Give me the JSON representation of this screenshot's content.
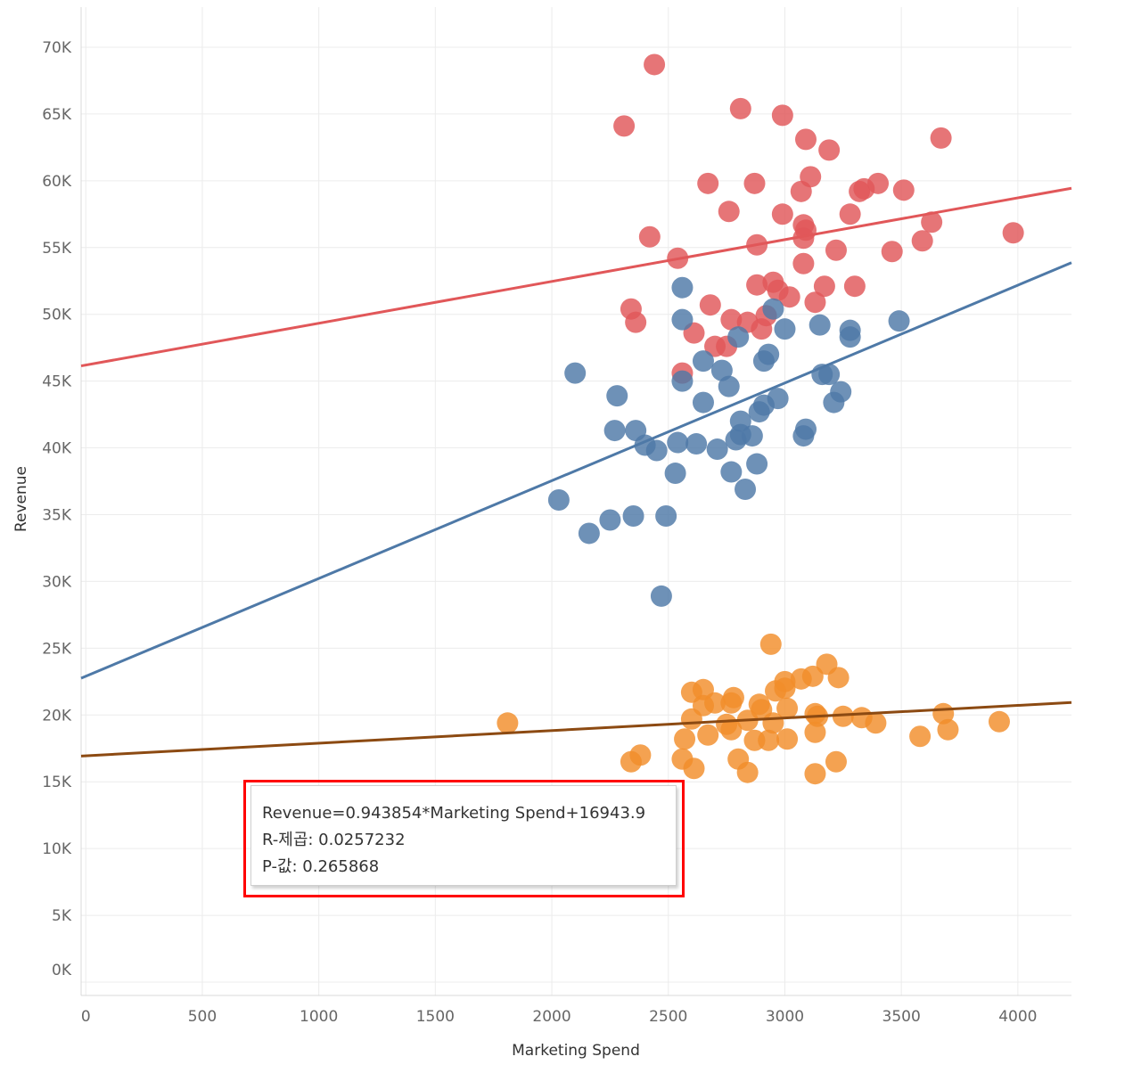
{
  "chart_data": {
    "type": "scatter",
    "xlabel": "Marketing Spend",
    "ylabel": "Revenue",
    "xlim": [
      -20,
      4230
    ],
    "ylim": [
      -1000,
      73000
    ],
    "x_ticks": [
      0,
      500,
      1000,
      1500,
      2000,
      2500,
      3000,
      3500,
      4000
    ],
    "x_tick_labels": [
      "0",
      "500",
      "1000",
      "1500",
      "2000",
      "2500",
      "3000",
      "3500",
      "4000"
    ],
    "y_ticks": [
      0,
      5000,
      10000,
      15000,
      20000,
      25000,
      30000,
      35000,
      40000,
      45000,
      50000,
      55000,
      60000,
      65000,
      70000
    ],
    "y_tick_labels": [
      "0K",
      "5K",
      "10K",
      "15K",
      "20K",
      "25K",
      "30K",
      "35K",
      "40K",
      "45K",
      "50K",
      "55K",
      "60K",
      "65K",
      "70K"
    ],
    "grid": true,
    "series": [
      {
        "color": "#e15759",
        "trend": {
          "slope": 3.13,
          "intercept": 46200
        },
        "points": [
          [
            2440,
            68700
          ],
          [
            2310,
            64100
          ],
          [
            2810,
            65400
          ],
          [
            2990,
            64900
          ],
          [
            3090,
            63100
          ],
          [
            3190,
            62300
          ],
          [
            3670,
            63200
          ],
          [
            3110,
            60300
          ],
          [
            2670,
            59800
          ],
          [
            2870,
            59800
          ],
          [
            3320,
            59200
          ],
          [
            3340,
            59400
          ],
          [
            3400,
            59800
          ],
          [
            3510,
            59300
          ],
          [
            3070,
            59200
          ],
          [
            2760,
            57700
          ],
          [
            2990,
            57500
          ],
          [
            3280,
            57500
          ],
          [
            3080,
            56700
          ],
          [
            3090,
            56300
          ],
          [
            3080,
            55700
          ],
          [
            3630,
            56900
          ],
          [
            3980,
            56100
          ],
          [
            2420,
            55800
          ],
          [
            2880,
            55200
          ],
          [
            3590,
            55500
          ],
          [
            3220,
            54800
          ],
          [
            3460,
            54700
          ],
          [
            2540,
            54200
          ],
          [
            3080,
            53800
          ],
          [
            2880,
            52200
          ],
          [
            2950,
            52400
          ],
          [
            2970,
            51800
          ],
          [
            3020,
            51300
          ],
          [
            3170,
            52100
          ],
          [
            3300,
            52100
          ],
          [
            2340,
            50400
          ],
          [
            2360,
            49400
          ],
          [
            2680,
            50700
          ],
          [
            2770,
            49600
          ],
          [
            2840,
            49400
          ],
          [
            2920,
            49900
          ],
          [
            2900,
            48900
          ],
          [
            2610,
            48600
          ],
          [
            2700,
            47600
          ],
          [
            2750,
            47600
          ],
          [
            2560,
            45600
          ],
          [
            3130,
            50900
          ]
        ]
      },
      {
        "color": "#4e79a7",
        "trend": {
          "slope": 7.32,
          "intercept": 22900
        },
        "points": [
          [
            2560,
            52000
          ],
          [
            2950,
            50400
          ],
          [
            2560,
            49600
          ],
          [
            3000,
            48900
          ],
          [
            3150,
            49200
          ],
          [
            3280,
            48800
          ],
          [
            3280,
            48300
          ],
          [
            3490,
            49500
          ],
          [
            2800,
            48300
          ],
          [
            2930,
            47000
          ],
          [
            2910,
            46500
          ],
          [
            2650,
            46500
          ],
          [
            2730,
            45800
          ],
          [
            2560,
            45000
          ],
          [
            2100,
            45600
          ],
          [
            3160,
            45500
          ],
          [
            3190,
            45500
          ],
          [
            2760,
            44600
          ],
          [
            3240,
            44200
          ],
          [
            2280,
            43900
          ],
          [
            2970,
            43700
          ],
          [
            2650,
            43400
          ],
          [
            3210,
            43400
          ],
          [
            2910,
            43200
          ],
          [
            2890,
            42700
          ],
          [
            2810,
            42000
          ],
          [
            2360,
            41300
          ],
          [
            2270,
            41300
          ],
          [
            3090,
            41400
          ],
          [
            3080,
            40900
          ],
          [
            2810,
            41000
          ],
          [
            2790,
            40600
          ],
          [
            2860,
            40900
          ],
          [
            2400,
            40200
          ],
          [
            2450,
            39800
          ],
          [
            2540,
            40400
          ],
          [
            2620,
            40300
          ],
          [
            2710,
            39900
          ],
          [
            2880,
            38800
          ],
          [
            2530,
            38100
          ],
          [
            2770,
            38200
          ],
          [
            2830,
            36900
          ],
          [
            2030,
            36100
          ],
          [
            2160,
            33600
          ],
          [
            2250,
            34600
          ],
          [
            2350,
            34900
          ],
          [
            2490,
            34900
          ],
          [
            2470,
            28900
          ]
        ]
      },
      {
        "color": "#f28e2b",
        "trend": {
          "slope": 0.943854,
          "intercept": 16943.9
        },
        "points": [
          [
            2940,
            25300
          ],
          [
            3180,
            23800
          ],
          [
            3000,
            22500
          ],
          [
            3070,
            22700
          ],
          [
            3120,
            22900
          ],
          [
            3230,
            22800
          ],
          [
            2600,
            21700
          ],
          [
            2650,
            21900
          ],
          [
            2960,
            21800
          ],
          [
            3000,
            22000
          ],
          [
            2780,
            21300
          ],
          [
            2700,
            20900
          ],
          [
            2650,
            20700
          ],
          [
            2770,
            20900
          ],
          [
            2890,
            20800
          ],
          [
            2900,
            20400
          ],
          [
            3010,
            20500
          ],
          [
            3130,
            20100
          ],
          [
            3140,
            19900
          ],
          [
            3250,
            19900
          ],
          [
            3330,
            19800
          ],
          [
            3390,
            19400
          ],
          [
            3680,
            20100
          ],
          [
            3700,
            18900
          ],
          [
            3920,
            19500
          ],
          [
            3580,
            18400
          ],
          [
            1810,
            19400
          ],
          [
            2600,
            19700
          ],
          [
            2750,
            19300
          ],
          [
            2840,
            19600
          ],
          [
            2950,
            19400
          ],
          [
            2770,
            18900
          ],
          [
            2570,
            18200
          ],
          [
            2670,
            18500
          ],
          [
            2870,
            18100
          ],
          [
            2930,
            18100
          ],
          [
            3010,
            18200
          ],
          [
            3130,
            18700
          ],
          [
            2380,
            17000
          ],
          [
            2340,
            16500
          ],
          [
            2560,
            16700
          ],
          [
            2800,
            16700
          ],
          [
            3220,
            16500
          ],
          [
            2610,
            16000
          ],
          [
            2840,
            15700
          ],
          [
            3130,
            15600
          ]
        ]
      }
    ],
    "annotation": {
      "lines": [
        "Revenue=0.943854*Marketing Spend+16943.9",
        "R-제곱: 0.0257232",
        "P-값: 0.265868"
      ],
      "highlight_color": "#ff0000"
    }
  }
}
